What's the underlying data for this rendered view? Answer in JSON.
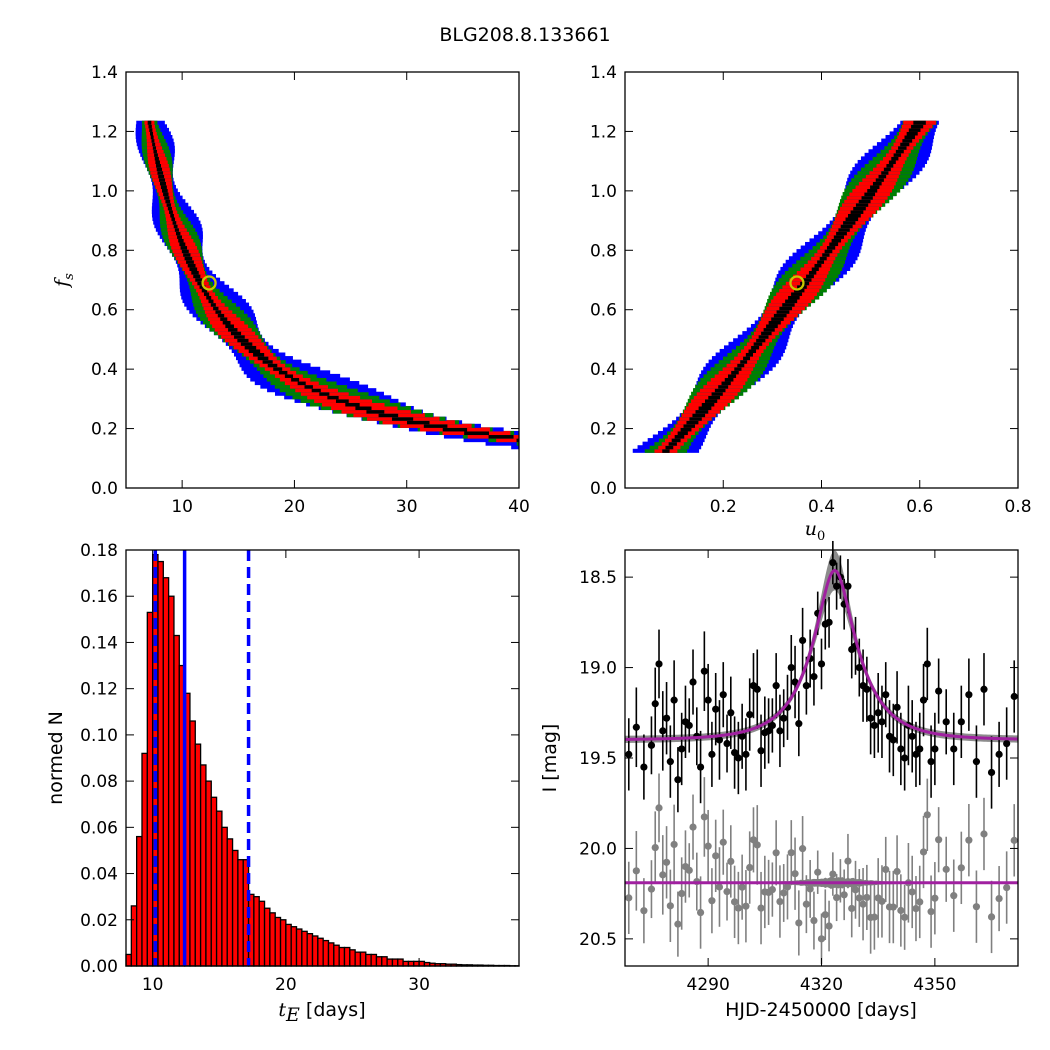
{
  "figure": {
    "title": "BLG208.8.133661",
    "colors": {
      "one_sigma": "#000000",
      "two_sigma": "#ff0000",
      "three_sigma": "#008000",
      "four_sigma": "#0000ff",
      "best_fit_marker": "#c8c800",
      "hist_bar": "#ff0000",
      "hist_edge": "#000000",
      "vline": "#0000ff",
      "data_main": "#000000",
      "data_residual": "#808080",
      "model_band": "#808080",
      "model_line": "#a020a0"
    }
  },
  "chart_data": [
    {
      "id": "tE-fs",
      "type": "heatmap",
      "title": "",
      "xlabel": "",
      "ylabel": "f_s",
      "xlim": [
        5,
        40
      ],
      "ylim": [
        0.0,
        1.4
      ],
      "xticks": [
        10,
        20,
        30,
        40
      ],
      "yticks": [
        0.0,
        0.2,
        0.4,
        0.6,
        0.8,
        1.0,
        1.2,
        1.4
      ],
      "yticklabels": [
        "0.0",
        "0.2",
        "0.4",
        "0.6",
        "0.8",
        "1.0",
        "1.2",
        "1.4"
      ],
      "fs_range": [
        0.12,
        1.23
      ],
      "best_fit": {
        "x": 12.4,
        "y": 0.69
      },
      "ridge": {
        "formula": "tE = 8.4 / fs^0.85"
      },
      "sigma_bands": [
        {
          "name": "4-sigma",
          "half_width_dex": 0.075
        },
        {
          "name": "3-sigma",
          "half_width_dex": 0.055
        },
        {
          "name": "2-sigma",
          "half_width_dex": 0.038
        },
        {
          "name": "1-sigma",
          "half_width_dex": 0.012
        }
      ]
    },
    {
      "id": "u0-fs",
      "type": "heatmap",
      "title": "",
      "xlabel": "u0",
      "ylabel": "",
      "xlim": [
        0.0,
        0.8
      ],
      "ylim": [
        0.0,
        1.4
      ],
      "xticks": [
        0.2,
        0.4,
        0.6,
        0.8
      ],
      "xticklabels": [
        "0.2",
        "0.4",
        "0.6",
        "0.8"
      ],
      "yticks": [
        0.0,
        0.2,
        0.4,
        0.6,
        0.8,
        1.0,
        1.2,
        1.4
      ],
      "yticklabels": [
        "0.0",
        "0.2",
        "0.4",
        "0.6",
        "0.8",
        "1.0",
        "1.2",
        "1.4"
      ],
      "fs_range": [
        0.12,
        1.23
      ],
      "best_fit": {
        "x": 0.35,
        "y": 0.69
      },
      "ridge": {
        "formula": "u0 = 0.505 * fs^0.85"
      },
      "sigma_bands": [
        {
          "name": "4-sigma",
          "half_width": 0.055
        },
        {
          "name": "3-sigma",
          "half_width": 0.045
        },
        {
          "name": "2-sigma",
          "half_width": 0.032
        },
        {
          "name": "1-sigma",
          "half_width": 0.01
        }
      ]
    },
    {
      "id": "tE-hist",
      "type": "bar",
      "title": "",
      "xlabel": "t_E [days]",
      "ylabel": "normed N",
      "xlim": [
        8,
        37.5
      ],
      "ylim": [
        0.0,
        0.18
      ],
      "xticks": [
        10,
        20,
        30
      ],
      "yticks": [
        0.0,
        0.02,
        0.04,
        0.06,
        0.08,
        0.1,
        0.12,
        0.14,
        0.16,
        0.18
      ],
      "yticklabels": [
        "0.00",
        "0.02",
        "0.04",
        "0.06",
        "0.08",
        "0.10",
        "0.12",
        "0.14",
        "0.16",
        "0.18"
      ],
      "bin_start": 8.0,
      "bin_width": 0.4,
      "values": [
        0.005,
        0.026,
        0.056,
        0.092,
        0.153,
        0.178,
        0.175,
        0.168,
        0.16,
        0.143,
        0.13,
        0.118,
        0.106,
        0.096,
        0.087,
        0.08,
        0.073,
        0.067,
        0.06,
        0.055,
        0.05,
        0.046,
        0.046,
        0.031,
        0.03,
        0.028,
        0.025,
        0.023,
        0.021,
        0.02,
        0.018,
        0.017,
        0.016,
        0.015,
        0.014,
        0.013,
        0.012,
        0.011,
        0.01,
        0.009,
        0.008,
        0.008,
        0.007,
        0.006,
        0.006,
        0.005,
        0.005,
        0.004,
        0.004,
        0.003,
        0.003,
        0.003,
        0.002,
        0.002,
        0.002,
        0.002,
        0.0015,
        0.0012,
        0.001,
        0.001,
        0.0008,
        0.0008,
        0.0006,
        0.0005,
        0.0005,
        0.0004,
        0.0004,
        0.0003,
        0.0003,
        0.0002,
        0.0002,
        0.0002,
        0.0001,
        0.0001
      ],
      "median": 12.4,
      "lower": 10.2,
      "upper": 17.2
    },
    {
      "id": "lightcurve",
      "type": "scatter",
      "title": "",
      "xlabel": "HJD-2450000 [days]",
      "ylabel": "I [mag]",
      "xlim": [
        4268,
        4372
      ],
      "ylim": [
        20.65,
        18.35
      ],
      "xticks": [
        4290,
        4320,
        4350
      ],
      "yticks": [
        18.5,
        19.0,
        19.5,
        20.0,
        20.5
      ],
      "yticklabels": [
        "18.5",
        "19.0",
        "19.5",
        "20.0",
        "20.5"
      ],
      "model": {
        "t0": 4323.5,
        "tE": 12.4,
        "u0": 0.35,
        "fs": 0.69,
        "baseline": 19.4,
        "residual_offset": 20.19
      },
      "data": [
        [
          4269,
          19.48,
          0.2
        ],
        [
          4271,
          19.33,
          0.22
        ],
        [
          4273,
          19.55,
          0.18
        ],
        [
          4275,
          19.43,
          0.16
        ],
        [
          4276,
          19.2,
          0.2
        ],
        [
          4277,
          18.98,
          0.19
        ],
        [
          4278,
          19.35,
          0.22
        ],
        [
          4279,
          19.28,
          0.2
        ],
        [
          4280,
          19.52,
          0.2
        ],
        [
          4281,
          19.18,
          0.22
        ],
        [
          4282,
          19.62,
          0.18
        ],
        [
          4283,
          19.45,
          0.2
        ],
        [
          4284,
          19.3,
          0.2
        ],
        [
          4285,
          19.32,
          0.15
        ],
        [
          4286,
          19.08,
          0.18
        ],
        [
          4287,
          19.38,
          0.16
        ],
        [
          4288,
          19.55,
          0.2
        ],
        [
          4289,
          19.02,
          0.22
        ],
        [
          4290,
          19.18,
          0.2
        ],
        [
          4291,
          19.48,
          0.18
        ],
        [
          4292,
          19.23,
          0.2
        ],
        [
          4293,
          19.4,
          0.22
        ],
        [
          4294,
          19.15,
          0.18
        ],
        [
          4295,
          19.42,
          0.16
        ],
        [
          4296,
          19.25,
          0.2
        ],
        [
          4297,
          19.47,
          0.2
        ],
        [
          4298,
          19.5,
          0.2
        ],
        [
          4299,
          19.38,
          0.18
        ],
        [
          4300,
          19.48,
          0.2
        ],
        [
          4301,
          19.26,
          0.2
        ],
        [
          4302,
          19.1,
          0.18
        ],
        [
          4303,
          19.12,
          0.22
        ],
        [
          4304,
          19.46,
          0.2
        ],
        [
          4305,
          19.36,
          0.2
        ],
        [
          4306,
          19.35,
          0.18
        ],
        [
          4307,
          19.32,
          0.15
        ],
        [
          4308,
          19.1,
          0.18
        ],
        [
          4309,
          19.35,
          0.2
        ],
        [
          4310,
          19.28,
          0.16
        ],
        [
          4311,
          19.22,
          0.18
        ],
        [
          4312,
          19.0,
          0.18
        ],
        [
          4313,
          19.08,
          0.2
        ],
        [
          4314,
          19.31,
          0.18
        ],
        [
          4315,
          18.85,
          0.18
        ],
        [
          4316,
          19.1,
          0.16
        ],
        [
          4317,
          18.95,
          0.16
        ],
        [
          4318,
          19.05,
          0.16
        ],
        [
          4319,
          18.7,
          0.12
        ],
        [
          4320,
          18.98,
          0.14
        ],
        [
          4321,
          18.76,
          0.14
        ],
        [
          4322,
          18.75,
          0.14
        ],
        [
          4323,
          18.42,
          0.12
        ],
        [
          4324,
          18.55,
          0.13
        ],
        [
          4325,
          18.5,
          0.12
        ],
        [
          4326,
          18.65,
          0.14
        ],
        [
          4327,
          18.55,
          0.15
        ],
        [
          4328,
          18.9,
          0.16
        ],
        [
          4329,
          18.88,
          0.16
        ],
        [
          4330,
          19.0,
          0.16
        ],
        [
          4331,
          19.1,
          0.2
        ],
        [
          4332,
          19.12,
          0.18
        ],
        [
          4333,
          19.28,
          0.2
        ],
        [
          4334,
          19.32,
          0.18
        ],
        [
          4335,
          19.25,
          0.22
        ],
        [
          4336,
          19.3,
          0.2
        ],
        [
          4337,
          19.15,
          0.18
        ],
        [
          4338,
          19.38,
          0.2
        ],
        [
          4339,
          19.4,
          0.2
        ],
        [
          4340,
          19.22,
          0.2
        ],
        [
          4341,
          19.45,
          0.2
        ],
        [
          4342,
          19.5,
          0.18
        ],
        [
          4343,
          19.32,
          0.22
        ],
        [
          4344,
          19.38,
          0.2
        ],
        [
          4345,
          19.48,
          0.18
        ],
        [
          4346,
          19.45,
          0.2
        ],
        [
          4347,
          19.18,
          0.2
        ],
        [
          4348,
          18.98,
          0.2
        ],
        [
          4349,
          19.52,
          0.2
        ],
        [
          4350,
          19.45,
          0.2
        ],
        [
          4351,
          19.13,
          0.18
        ],
        [
          4353,
          19.3,
          0.18
        ],
        [
          4355,
          19.45,
          0.2
        ],
        [
          4357,
          19.3,
          0.2
        ],
        [
          4359,
          19.15,
          0.2
        ],
        [
          4361,
          19.52,
          0.2
        ],
        [
          4363,
          19.12,
          0.2
        ],
        [
          4365,
          19.58,
          0.2
        ],
        [
          4367,
          19.48,
          0.18
        ],
        [
          4369,
          19.42,
          0.2
        ],
        [
          4371,
          19.16,
          0.2
        ]
      ],
      "residual_scatter_seed": 7
    }
  ]
}
